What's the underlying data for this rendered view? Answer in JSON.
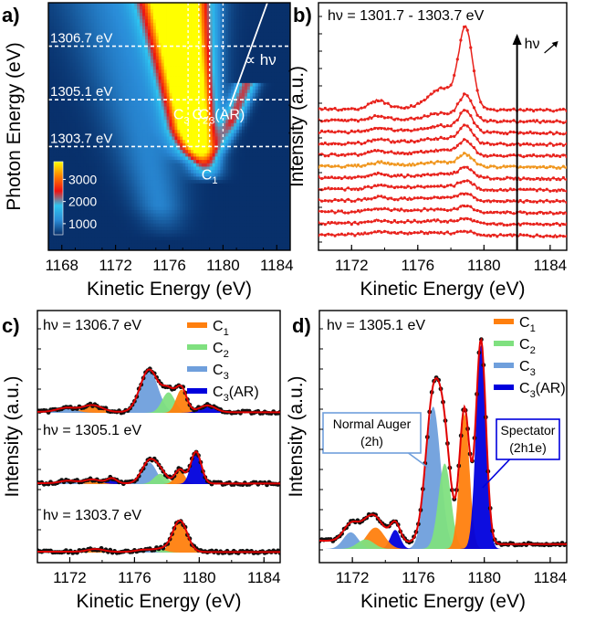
{
  "figure": {
    "panels": {
      "a": {
        "label": "a)"
      },
      "b": {
        "label": "b)"
      },
      "c": {
        "label": "c)"
      },
      "d": {
        "label": "d)"
      }
    }
  },
  "chart_data": [
    {
      "panel": "a",
      "type": "heatmap",
      "xlabel": "Kinetic Energy (eV)",
      "ylabel": "Photon Energy (eV)",
      "xlim": [
        1167,
        1185
      ],
      "ylim": [
        1300.6,
        1308.0
      ],
      "xticks": [
        "1168",
        "1172",
        "1176",
        "1180",
        "1184"
      ],
      "colorbar": {
        "min": 500,
        "max": 3800,
        "ticks": [
          "1000",
          "2000",
          "3000"
        ],
        "colors": [
          "#08306b",
          "#2a8cd8",
          "#2ec4f0",
          "#f01010",
          "#ff8000",
          "#ffff00"
        ]
      },
      "hlines": [
        {
          "label": "1306.7 eV",
          "value": 1306.7
        },
        {
          "label": "1305.1 eV",
          "value": 1305.1
        },
        {
          "label": "1303.7 eV",
          "value": 1303.7
        }
      ],
      "vlines": [
        1177.4,
        1178.2,
        1179.0,
        1180.0
      ],
      "features": [
        {
          "label": "C",
          "sub": "3",
          "x": 1176.9,
          "y": 1304.9
        },
        {
          "label": "C",
          "sub": "2",
          "x": 1178.3,
          "y": 1304.9
        },
        {
          "label": "C",
          "sub": "3",
          "x": 1179.9,
          "y": 1304.9,
          "suffix": "(AR)"
        },
        {
          "label": "C",
          "sub": "1",
          "x": 1179.0,
          "y": 1303.1
        }
      ],
      "dispersion_line": {
        "label": "∝ hν",
        "x": [
          1180.5,
          1183.3
        ],
        "y": [
          1304.9,
          1308.0
        ]
      },
      "peaks": [
        {
          "x0": 1178.6,
          "y0": 1303.2,
          "slope": -0.45,
          "w0": 0.8,
          "wg": 0.15,
          "amp": 3400,
          "ylen": 7
        },
        {
          "x0": 1177.3,
          "y0": 1303.8,
          "slope": -0.2,
          "w0": 0.9,
          "wg": 0.18,
          "amp": 2200,
          "ylen": 6
        },
        {
          "x0": 1180.2,
          "y0": 1304.0,
          "slope": 1.0,
          "w0": 0.5,
          "wg": 0.05,
          "amp": 1800,
          "ylen": 1.6
        },
        {
          "x0": 1175.5,
          "y0": 1301.5,
          "slope": -0.55,
          "w0": 1.2,
          "wg": 0.25,
          "amp": 600,
          "ylen": 8
        }
      ],
      "background": 500
    },
    {
      "panel": "b",
      "type": "line",
      "title": "hν = 1301.7 - 1303.7 eV",
      "xlabel": "Kinetic Energy (eV)",
      "ylabel": "Intensity (a.u.)",
      "xlim": [
        1170,
        1185
      ],
      "xticks": [
        "1172",
        "1176",
        "1180",
        "1184"
      ],
      "arrow_x": 1182.0,
      "arrow_label": "hν",
      "spectra": [
        {
          "offset": 0,
          "peak": 0.12,
          "color": "#e8221c"
        },
        {
          "offset": 1,
          "peak": 0.16,
          "color": "#e8221c"
        },
        {
          "offset": 2,
          "peak": 0.2,
          "color": "#e8221c"
        },
        {
          "offset": 3,
          "peak": 0.24,
          "color": "#e8221c"
        },
        {
          "offset": 4,
          "peak": 0.28,
          "color": "#e8221c"
        },
        {
          "offset": 5,
          "peak": 0.34,
          "color": "#e8221c"
        },
        {
          "offset": 6,
          "peak": 0.4,
          "color": "#f0961e"
        },
        {
          "offset": 7,
          "peak": 0.48,
          "color": "#e8221c"
        },
        {
          "offset": 8,
          "peak": 0.58,
          "color": "#e8221c"
        },
        {
          "offset": 9,
          "peak": 0.7,
          "color": "#e8221c"
        },
        {
          "offset": 10,
          "peak": 0.85,
          "color": "#e8221c"
        },
        {
          "offset": 11,
          "peak": 2.7,
          "color": "#e8221c"
        }
      ]
    },
    {
      "panel": "c",
      "type": "area",
      "xlabel": "Kinetic Energy (eV)",
      "ylabel": "Intensity (a.u.)",
      "xlim": [
        1170,
        1185
      ],
      "xticks": [
        "1172",
        "1176",
        "1180",
        "1184"
      ],
      "legend": [
        {
          "name": "C",
          "sub": "1",
          "color": "#ff7f0e"
        },
        {
          "name": "C",
          "sub": "2",
          "color": "#7fe07f"
        },
        {
          "name": "C",
          "sub": "3",
          "color": "#6f9fdc"
        },
        {
          "name": "C",
          "sub": "3",
          "suffix": "(AR)",
          "color": "#0000dd"
        }
      ],
      "spectra": [
        {
          "label": "hν = 1306.7 eV",
          "components": [
            {
              "color": "#6f9fdc",
              "center": 1176.9,
              "amp": 1.55,
              "sigma": 0.55
            },
            {
              "color": "#7fe07f",
              "center": 1178.1,
              "amp": 0.75,
              "sigma": 0.4
            },
            {
              "color": "#ff7f0e",
              "center": 1178.9,
              "amp": 0.85,
              "sigma": 0.33
            },
            {
              "color": "#0000dd",
              "center": 1180.5,
              "amp": 0.25,
              "sigma": 0.5
            },
            {
              "color": "#ff7f0e",
              "center": 1173.4,
              "amp": 0.25,
              "sigma": 0.6
            },
            {
              "color": "#6f9fdc",
              "center": 1171.8,
              "amp": 0.15,
              "sigma": 0.6
            }
          ]
        },
        {
          "label": "hν = 1305.1 eV",
          "components": [
            {
              "color": "#6f9fdc",
              "center": 1176.9,
              "amp": 0.85,
              "sigma": 0.45
            },
            {
              "color": "#7fe07f",
              "center": 1177.6,
              "amp": 0.4,
              "sigma": 0.4
            },
            {
              "color": "#ff7f0e",
              "center": 1178.8,
              "amp": 0.55,
              "sigma": 0.3
            },
            {
              "color": "#0000dd",
              "center": 1179.8,
              "amp": 1.25,
              "sigma": 0.32
            },
            {
              "color": "#0000dd",
              "center": 1174.6,
              "amp": 0.2,
              "sigma": 0.3
            },
            {
              "color": "#ff7f0e",
              "center": 1173.4,
              "amp": 0.15,
              "sigma": 0.5
            },
            {
              "color": "#6f9fdc",
              "center": 1171.9,
              "amp": 0.1,
              "sigma": 0.5
            }
          ]
        },
        {
          "label": "hν = 1303.7 eV",
          "components": [
            {
              "color": "#ff7f0e",
              "center": 1178.8,
              "amp": 1.15,
              "sigma": 0.45
            },
            {
              "color": "#7fe07f",
              "center": 1177.6,
              "amp": 0.1,
              "sigma": 0.4
            },
            {
              "color": "#6f9fdc",
              "center": 1176.6,
              "amp": 0.08,
              "sigma": 0.5
            },
            {
              "color": "#ff7f0e",
              "center": 1173.6,
              "amp": 0.1,
              "sigma": 0.5
            }
          ]
        }
      ]
    },
    {
      "panel": "d",
      "type": "area",
      "title": "hν = 1305.1 eV",
      "xlabel": "Kinetic Energy (eV)",
      "ylabel": "Intensity (a.u.)",
      "xlim": [
        1170,
        1185
      ],
      "xticks": [
        "1172",
        "1176",
        "1180",
        "1184"
      ],
      "legend": [
        {
          "name": "C",
          "sub": "1",
          "color": "#ff7f0e"
        },
        {
          "name": "C",
          "sub": "2",
          "color": "#7fe07f"
        },
        {
          "name": "C",
          "sub": "3",
          "color": "#6f9fdc"
        },
        {
          "name": "C",
          "sub": "3",
          "suffix": "(AR)",
          "color": "#0000dd"
        }
      ],
      "annotations": [
        {
          "lines": [
            "Normal Auger",
            "(2h)"
          ],
          "color": "#6f9fdc",
          "target_x": 1177.0
        },
        {
          "lines": [
            "Spectator",
            "(2h1e)"
          ],
          "color": "#0000dd",
          "target_x": 1180.2
        }
      ],
      "components": [
        {
          "color": "#6f9fdc",
          "center": 1176.9,
          "amp": 0.6,
          "sigma": 0.45
        },
        {
          "color": "#7fe07f",
          "center": 1177.6,
          "amp": 0.36,
          "sigma": 0.38
        },
        {
          "color": "#ff7f0e",
          "center": 1178.8,
          "amp": 0.57,
          "sigma": 0.3
        },
        {
          "color": "#0000dd",
          "center": 1179.8,
          "amp": 0.86,
          "sigma": 0.3
        },
        {
          "color": "#0000dd",
          "center": 1174.6,
          "amp": 0.08,
          "sigma": 0.3
        },
        {
          "color": "#ff7f0e",
          "center": 1173.4,
          "amp": 0.09,
          "sigma": 0.55
        },
        {
          "color": "#6f9fdc",
          "center": 1171.9,
          "amp": 0.07,
          "sigma": 0.45
        },
        {
          "color": "#7fe07f",
          "center": 1172.8,
          "amp": 0.04,
          "sigma": 0.5
        }
      ]
    }
  ]
}
